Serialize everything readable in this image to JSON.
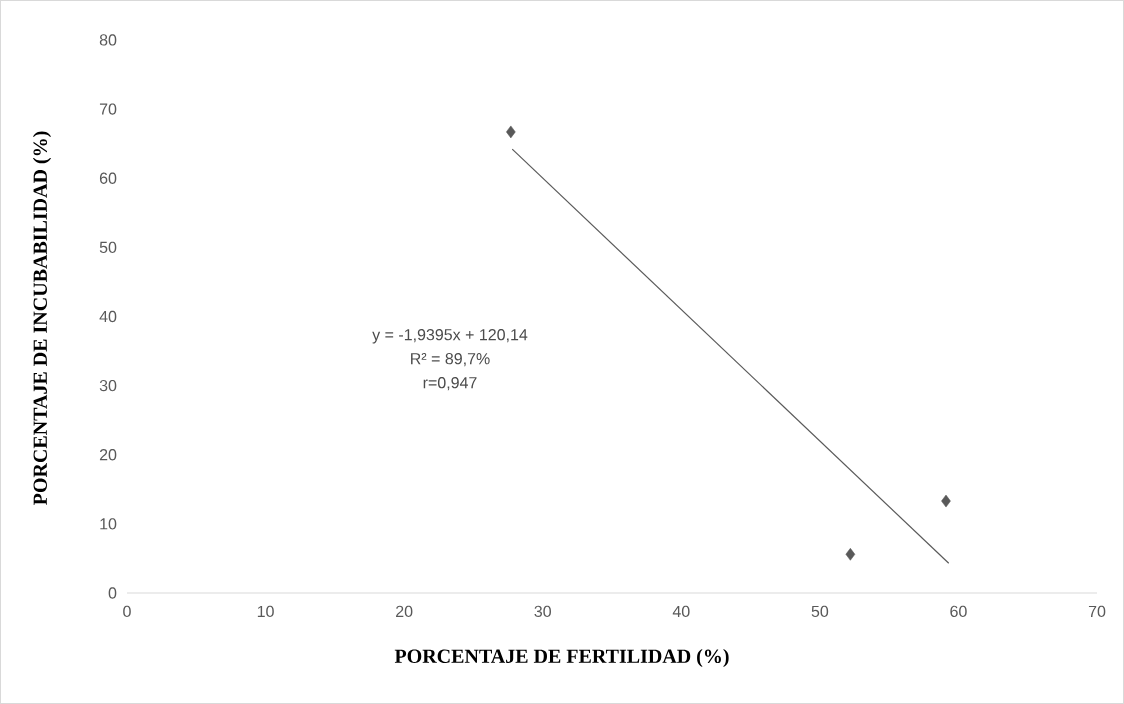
{
  "chart_data": {
    "type": "scatter",
    "xlabel": "PORCENTAJE DE FERTILIDAD (%)",
    "ylabel": "PORCENTAJE DE INCUBABILIDAD (%)",
    "xlim": [
      0,
      70
    ],
    "ylim": [
      0,
      80
    ],
    "xticks": [
      0,
      10,
      20,
      30,
      40,
      50,
      60,
      70
    ],
    "yticks": [
      0,
      10,
      20,
      30,
      40,
      50,
      60,
      70,
      80
    ],
    "annotations": [
      "y = -1,9395x + 120,14",
      "R² = 89,7%",
      "r=0,947"
    ],
    "marker": "diamond",
    "series": [
      {
        "color": "#595959",
        "x": [
          27.7,
          52.2,
          59.1
        ],
        "values": [
          66.7,
          5.6,
          13.3
        ]
      },
      {
        "type": "line",
        "color": "#595959",
        "x": [
          27.8,
          59.3
        ],
        "values": [
          64.2,
          4.3
        ],
        "marker": "none"
      }
    ]
  }
}
